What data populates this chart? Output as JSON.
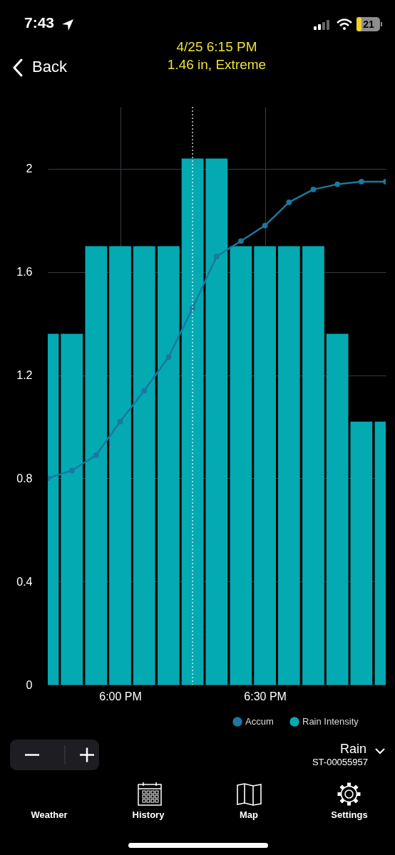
{
  "chart_data": {
    "type": "bar",
    "title": "4/25 6:15 PM",
    "subtitle": "1.46 in, Extreme",
    "x": [
      17.75,
      17.833,
      17.917,
      18,
      18.083,
      18.167,
      18.25,
      18.333,
      18.417,
      18.5,
      18.583,
      18.667,
      18.75,
      18.833,
      18.917
    ],
    "series": [
      {
        "name": "Accum",
        "type": "line",
        "color": "#1b78a0",
        "values": [
          0.8,
          0.83,
          0.89,
          1.02,
          1.14,
          1.27,
          1.46,
          1.66,
          1.72,
          1.78,
          1.87,
          1.92,
          1.94,
          1.95,
          1.95
        ]
      },
      {
        "name": "Rain Intensity",
        "color": "#03aab2",
        "values": [
          1.36,
          1.36,
          1.7,
          1.7,
          1.7,
          1.7,
          2.04,
          2.04,
          1.7,
          1.7,
          1.7,
          1.7,
          1.36,
          1.02,
          1.02
        ]
      }
    ],
    "xlim": [
      17.75,
      18.917
    ],
    "xticks": [
      {
        "value": 18,
        "label": "6:00 PM"
      },
      {
        "value": 18.5,
        "label": "6:30 PM"
      }
    ],
    "ylim": [
      0,
      2.24
    ],
    "yticks": [
      0,
      0.4,
      0.8,
      1.2,
      1.6,
      2
    ],
    "grid": true,
    "legend": "bottom right",
    "marker": "circle",
    "ref_lines": [
      {
        "axis": "x",
        "value": 18.25,
        "color": "#ffffff",
        "line_style": "dotted"
      }
    ],
    "annotations": [
      "7:43",
      "21",
      "Back",
      "Rain",
      "ST-00055957",
      "Weather",
      "History",
      "Map",
      "Settings"
    ]
  }
}
